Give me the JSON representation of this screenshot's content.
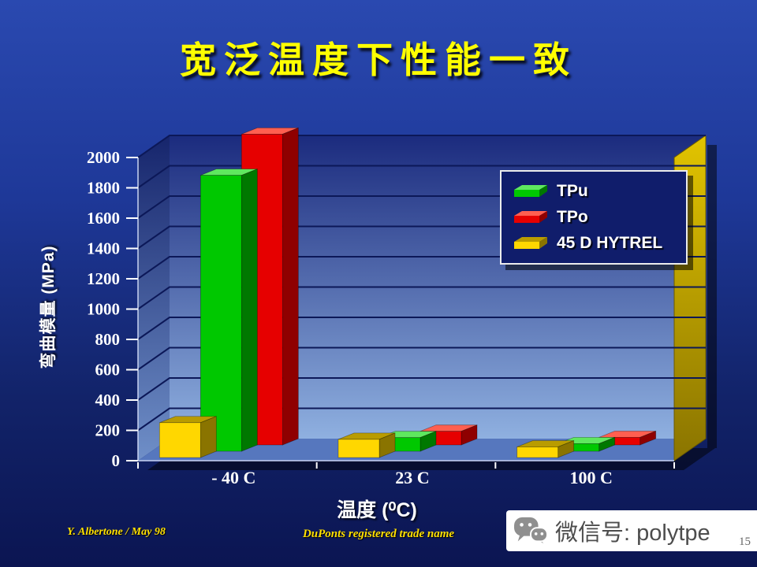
{
  "slide": {
    "title": "宽泛温度下性能一致",
    "footer": {
      "left": "Y. Albertone / May 98",
      "center": "DuPonts registered trade name",
      "page_number": "15"
    }
  },
  "watermark": {
    "icon": "wechat-icon",
    "text": "微信号: polytpe"
  },
  "chart_data": {
    "type": "bar",
    "style": "3d-column",
    "title": "",
    "categories": [
      "- 40 C",
      "23 C",
      "100 C"
    ],
    "series": [
      {
        "name": "45 D HYTREL",
        "color": "#ffd700",
        "top_color": "#b99c00",
        "side_color": "#8a7400",
        "values": [
          230,
          120,
          70
        ]
      },
      {
        "name": "TPu",
        "color": "#00c800",
        "top_color": "#5fe85f",
        "side_color": "#007800",
        "values": [
          1820,
          90,
          50
        ]
      },
      {
        "name": "TPo",
        "color": "#e60000",
        "top_color": "#ff5f50",
        "side_color": "#8f0000",
        "values": [
          2050,
          90,
          50
        ]
      }
    ],
    "legend_order": [
      "TPu",
      "TPo",
      "45 D HYTREL"
    ],
    "legend_position": "top-right",
    "xlabel": "温度 (⁰C)",
    "ylabel": "弯曲模量 (MPa)",
    "ylim": [
      0,
      2000
    ],
    "ytick_step": 200,
    "yticks": [
      0,
      200,
      400,
      600,
      800,
      1000,
      1200,
      1400,
      1600,
      1800,
      2000
    ],
    "grid": true
  }
}
